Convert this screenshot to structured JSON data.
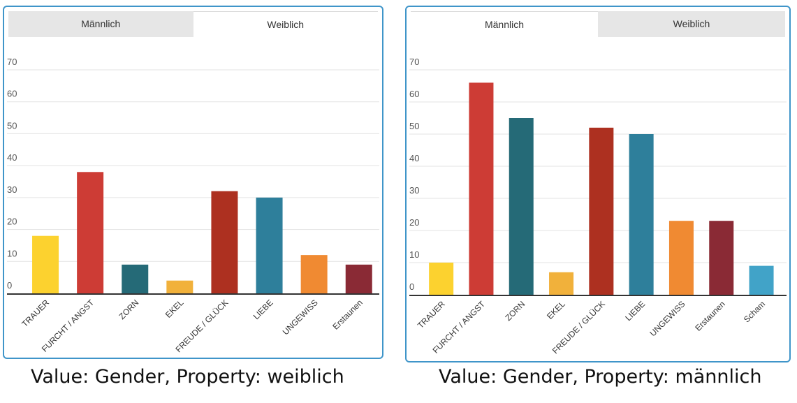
{
  "panels": [
    {
      "tabs": [
        "Männlich",
        "Weiblich"
      ],
      "active_tab": 1,
      "caption": "Value: Gender, Property: weiblich"
    },
    {
      "tabs": [
        "Männlich",
        "Weiblich"
      ],
      "active_tab": 0,
      "caption": "Value: Gender, Property: männlich"
    }
  ],
  "chart_data": [
    {
      "type": "bar",
      "categories": [
        "TRAUER",
        "FURCHT / ANGST",
        "ZORN",
        "EKEL",
        "FREUDE / GLÜCK",
        "LIEBE",
        "UNGEWISS",
        "Erstaunen"
      ],
      "values": [
        18,
        38,
        9,
        4,
        32,
        30,
        12,
        9
      ],
      "colors": [
        "#fcd22f",
        "#cd3c35",
        "#256a77",
        "#f1b13b",
        "#ad3020",
        "#2e7f9b",
        "#f08a32",
        "#8a2a35"
      ],
      "ylim": [
        0,
        70
      ],
      "yticks": [
        0,
        10,
        20,
        30,
        40,
        50,
        60,
        70
      ],
      "grid": true
    },
    {
      "type": "bar",
      "categories": [
        "TRAUER",
        "FURCHT / ANGST",
        "ZORN",
        "EKEL",
        "FREUDE / GLÜCK",
        "LIEBE",
        "UNGEWISS",
        "Erstaunen",
        "Scham"
      ],
      "values": [
        10,
        66,
        55,
        7,
        52,
        50,
        23,
        23,
        9
      ],
      "colors": [
        "#fcd22f",
        "#cd3c35",
        "#256a77",
        "#f1b13b",
        "#ad3020",
        "#2e7f9b",
        "#f08a32",
        "#8a2a35",
        "#41a3c8"
      ],
      "ylim": [
        0,
        70
      ],
      "yticks": [
        0,
        10,
        20,
        30,
        40,
        50,
        60,
        70
      ],
      "grid": true
    }
  ]
}
